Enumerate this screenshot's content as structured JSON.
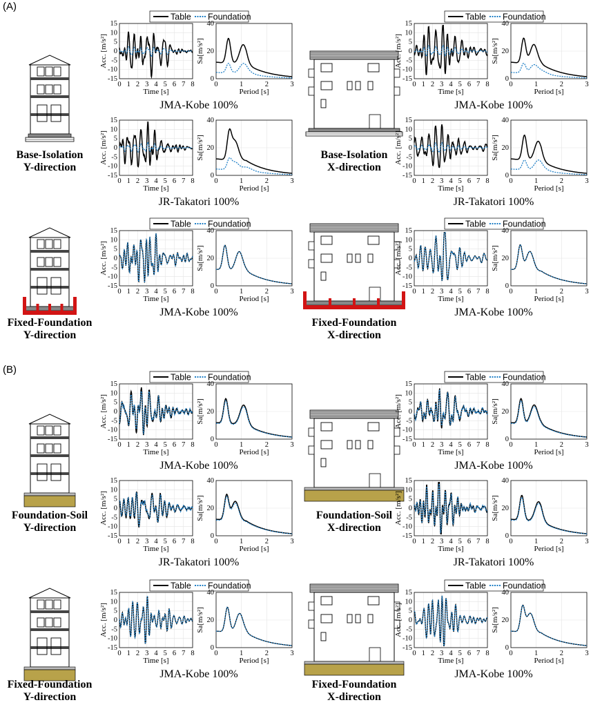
{
  "panels": [
    {
      "label": "(A)",
      "blocks": [
        {
          "left": {
            "title_line1": "Base-Isolation",
            "title_line2": "Y-direction",
            "support": "isolation-y"
          },
          "right": {
            "title_line1": "Base-Isolation",
            "title_line2": "X-direction",
            "support": "isolation-x"
          },
          "rows": [
            {
              "left_label": "JMA-Kobe 100%",
              "right_label": "JMA-Kobe 100%",
              "match": "low",
              "showLegend": true
            },
            {
              "left_label": "JR-Takatori 100%",
              "right_label": "JR-Takatori 100%",
              "match": "low",
              "showLegend": false
            }
          ]
        },
        {
          "left": {
            "title_line1": "Fixed-Foundation",
            "title_line2": "Y-direction",
            "support": "fixed-y"
          },
          "right": {
            "title_line1": "Fixed-Foundation",
            "title_line2": "X-direction",
            "support": "fixed-x"
          },
          "rows": [
            {
              "left_label": "JMA-Kobe 100%",
              "right_label": "JMA-Kobe 100%",
              "match": "full",
              "showLegend": true
            }
          ]
        }
      ]
    },
    {
      "label": "(B)",
      "blocks": [
        {
          "left": {
            "title_line1": "Foundation-Soil",
            "title_line2": "Y-direction",
            "support": "soil-y"
          },
          "right": {
            "title_line1": "Foundation-Soil",
            "title_line2": "X-direction",
            "support": "soil-x"
          },
          "rows": [
            {
              "left_label": "JMA-Kobe 100%",
              "right_label": "JMA-Kobe 100%",
              "match": "high",
              "showLegend": true
            },
            {
              "left_label": "JR-Takatori 100%",
              "right_label": "JR-Takatori 100%",
              "match": "high",
              "showLegend": false
            }
          ]
        },
        {
          "left": {
            "title_line1": "Fixed-Foundation",
            "title_line2": "Y-direction",
            "support": "soilfixed-y"
          },
          "right": {
            "title_line1": "Fixed-Foundation",
            "title_line2": "X-direction",
            "support": "soilfixed-x"
          },
          "rows": [
            {
              "left_label": "JMA-Kobe 100%",
              "right_label": "JMA-Kobe 100%",
              "match": "full",
              "showLegend": true
            }
          ]
        }
      ]
    }
  ],
  "legend": {
    "table": "Table",
    "foundation": "Foundation"
  },
  "acc_plot": {
    "ylabel": "Acc. [m/s²]",
    "xlabel": "Time [s]",
    "yticks": [
      "15",
      "10",
      "5",
      "0",
      "-5",
      "-10",
      "-15"
    ],
    "xticks": [
      "0",
      "1",
      "2",
      "3",
      "4",
      "5",
      "6",
      "7",
      "8"
    ],
    "ylim": [
      -15,
      15
    ],
    "xlim": [
      0,
      8
    ]
  },
  "sa_plot": {
    "ylabel": "Sa[m/s²]",
    "xlabel": "Period [s]",
    "yticks": [
      "40",
      "20",
      "0"
    ],
    "xticks": [
      "0",
      "1",
      "2",
      "3"
    ],
    "ylim": [
      0,
      40
    ],
    "xlim": [
      0,
      3
    ]
  },
  "colors": {
    "table": "#000000",
    "foundation": "#1f7fc6",
    "support_red": "#d21414",
    "soil": "#b8a24a"
  }
}
